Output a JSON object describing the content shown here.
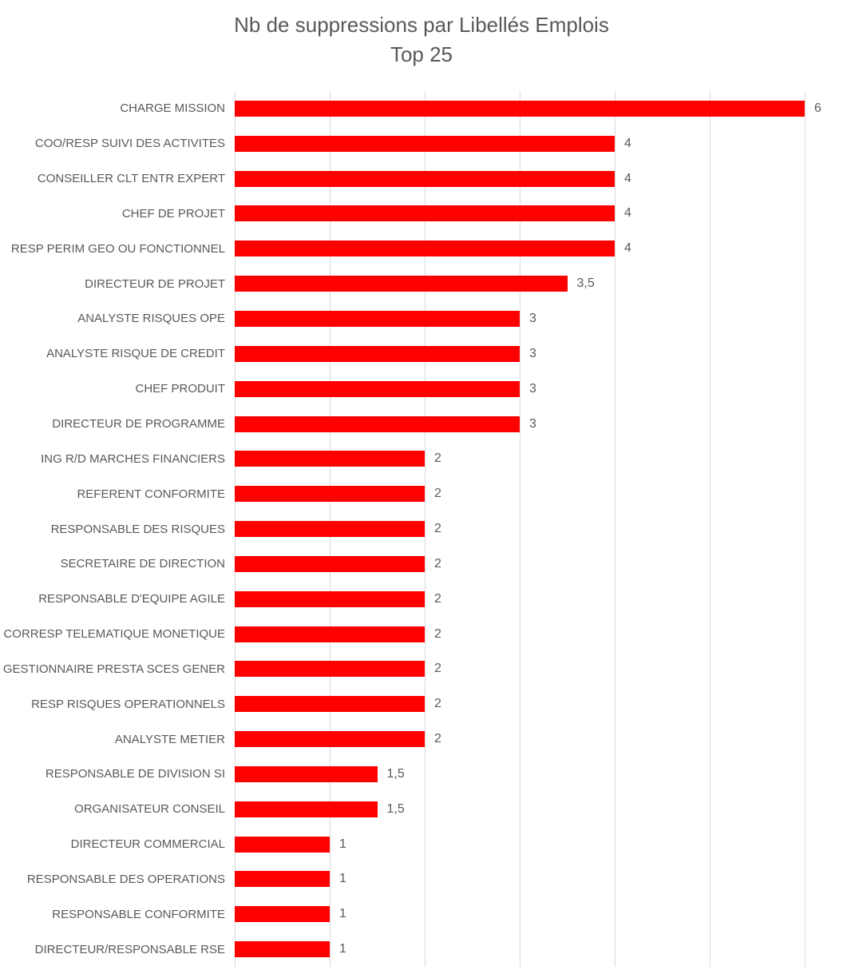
{
  "chart_data": {
    "type": "bar",
    "orientation": "horizontal",
    "title": "Nb de suppressions par Libellés Emplois",
    "subtitle": "Top 25",
    "categories": [
      "CHARGE MISSION",
      "COO/RESP SUIVI DES ACTIVITES",
      "CONSEILLER CLT ENTR EXPERT",
      "CHEF DE PROJET",
      "RESP PERIM GEO OU FONCTIONNEL",
      "DIRECTEUR DE PROJET",
      "ANALYSTE RISQUES OPE",
      "ANALYSTE RISQUE DE CREDIT",
      "CHEF PRODUIT",
      "DIRECTEUR DE PROGRAMME",
      "ING R/D MARCHES FINANCIERS",
      "REFERENT CONFORMITE",
      "RESPONSABLE DES RISQUES",
      "SECRETAIRE DE DIRECTION",
      "RESPONSABLE D'EQUIPE AGILE",
      "CORRESP TELEMATIQUE MONETIQUE",
      "GESTIONNAIRE PRESTA SCES GENER",
      "RESP RISQUES OPERATIONNELS",
      "ANALYSTE METIER",
      "RESPONSABLE DE DIVISION SI",
      "ORGANISATEUR CONSEIL",
      "DIRECTEUR COMMERCIAL",
      "RESPONSABLE DES OPERATIONS",
      "RESPONSABLE CONFORMITE",
      "DIRECTEUR/RESPONSABLE RSE"
    ],
    "values": [
      6,
      4,
      4,
      4,
      4,
      3.5,
      3,
      3,
      3,
      3,
      2,
      2,
      2,
      2,
      2,
      2,
      2,
      2,
      2,
      1.5,
      1.5,
      1,
      1,
      1,
      1
    ],
    "value_labels": [
      "6",
      "4",
      "4",
      "4",
      "4",
      "3,5",
      "3",
      "3",
      "3",
      "3",
      "2",
      "2",
      "2",
      "2",
      "2",
      "2",
      "2",
      "2",
      "2",
      "1,5",
      "1,5",
      "1",
      "1",
      "1",
      "1"
    ],
    "xlim": [
      0,
      6
    ],
    "gridline_interval": 1,
    "grid": "vertical",
    "legend": "none",
    "xlabel": "",
    "ylabel": "",
    "bar_color": "#FF0000",
    "text_color": "#595959",
    "gridline_color": "#D9D9D9",
    "background_color": "#FFFFFF"
  }
}
